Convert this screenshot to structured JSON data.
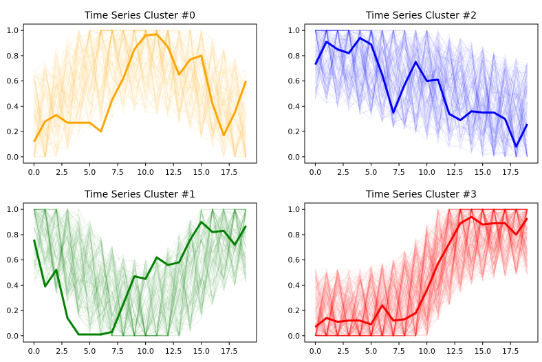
{
  "chart_data": [
    {
      "type": "line",
      "title": "Time Series Cluster #0",
      "color": "#ffa500",
      "x": [
        0,
        1,
        2,
        3,
        4,
        5,
        6,
        7,
        8,
        9,
        10,
        11,
        12,
        13,
        14,
        15,
        16,
        17,
        18,
        19
      ],
      "xticks": [
        "0.0",
        "2.5",
        "5.0",
        "7.5",
        "10.0",
        "12.5",
        "15.0",
        "17.5"
      ],
      "yticks": [
        "0.0",
        "0.2",
        "0.4",
        "0.6",
        "0.8",
        "1.0"
      ],
      "xlim": [
        -0.95,
        19.95
      ],
      "ylim": [
        -0.05,
        1.05
      ],
      "series": [
        {
          "values": [
            0.12,
            0.28,
            0.33,
            0.27,
            0.27,
            0.27,
            0.2,
            0.45,
            0.62,
            0.85,
            0.96,
            0.97,
            0.87,
            0.65,
            0.77,
            0.8,
            0.42,
            0.17,
            0.35,
            0.6
          ]
        }
      ],
      "background_series_note_style": "faint"
    },
    {
      "type": "line",
      "title": "Time Series Cluster #2",
      "color": "#0000ff",
      "x": [
        0,
        1,
        2,
        3,
        4,
        5,
        6,
        7,
        8,
        9,
        10,
        11,
        12,
        13,
        14,
        15,
        16,
        17,
        18,
        19
      ],
      "xticks": [
        "0.0",
        "2.5",
        "5.0",
        "7.5",
        "10.0",
        "12.5",
        "15.0",
        "17.5"
      ],
      "yticks": [
        "0.0",
        "0.2",
        "0.4",
        "0.6",
        "0.8",
        "1.0"
      ],
      "xlim": [
        -0.95,
        19.95
      ],
      "ylim": [
        -0.05,
        1.05
      ],
      "series": [
        {
          "values": [
            0.73,
            0.91,
            0.85,
            0.82,
            0.94,
            0.89,
            0.65,
            0.35,
            0.57,
            0.75,
            0.6,
            0.61,
            0.34,
            0.29,
            0.36,
            0.35,
            0.35,
            0.3,
            0.08,
            0.26
          ]
        }
      ]
    },
    {
      "type": "line",
      "title": "Time Series Cluster #1",
      "color": "#008000",
      "x": [
        0,
        1,
        2,
        3,
        4,
        5,
        6,
        7,
        8,
        9,
        10,
        11,
        12,
        13,
        14,
        15,
        16,
        17,
        18,
        19
      ],
      "xticks": [
        "0.0",
        "2.5",
        "5.0",
        "7.5",
        "10.0",
        "12.5",
        "15.0",
        "17.5"
      ],
      "yticks": [
        "0.0",
        "0.2",
        "0.4",
        "0.6",
        "0.8",
        "1.0"
      ],
      "xlim": [
        -0.95,
        19.95
      ],
      "ylim": [
        -0.05,
        1.05
      ],
      "series": [
        {
          "values": [
            0.76,
            0.39,
            0.52,
            0.14,
            0.01,
            0.01,
            0.01,
            0.03,
            0.25,
            0.47,
            0.45,
            0.62,
            0.56,
            0.58,
            0.76,
            0.9,
            0.82,
            0.83,
            0.72,
            0.87
          ]
        }
      ]
    },
    {
      "type": "line",
      "title": "Time Series Cluster #3",
      "color": "#ff0000",
      "x": [
        0,
        1,
        2,
        3,
        4,
        5,
        6,
        7,
        8,
        9,
        10,
        11,
        12,
        13,
        14,
        15,
        16,
        17,
        18,
        19
      ],
      "xticks": [
        "0.0",
        "2.5",
        "5.0",
        "7.5",
        "10.0",
        "12.5",
        "15.0",
        "17.5"
      ],
      "yticks": [
        "0.0",
        "0.2",
        "0.4",
        "0.6",
        "0.8",
        "1.0"
      ],
      "xlim": [
        -0.95,
        19.95
      ],
      "ylim": [
        -0.05,
        1.05
      ],
      "series": [
        {
          "values": [
            0.07,
            0.14,
            0.11,
            0.12,
            0.12,
            0.09,
            0.24,
            0.12,
            0.13,
            0.18,
            0.36,
            0.57,
            0.73,
            0.89,
            0.94,
            0.88,
            0.89,
            0.89,
            0.8,
            0.93
          ]
        }
      ]
    }
  ]
}
